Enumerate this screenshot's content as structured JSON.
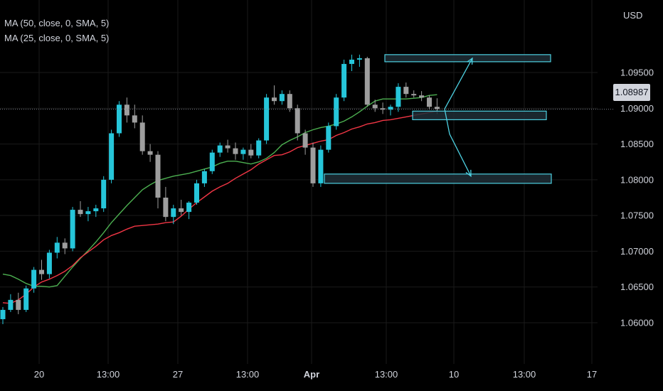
{
  "colors": {
    "background": "#000000",
    "bull": "#26c6da",
    "bear": "#9e9e9e",
    "ma50": "#4caf50",
    "ma25": "#f23645",
    "box_border": "#4dd0e1",
    "box_fill": "#1e2e36",
    "arrow": "#4dd0e1",
    "grid": "#1a1a1a",
    "text": "#d1d4dc"
  },
  "legend": [
    "MA (50, close, 0, SMA, 5)",
    "MA (25, close, 0, SMA, 5)"
  ],
  "currency": "USD",
  "last_price": "1.08987",
  "chart_data": {
    "type": "candlestick",
    "symbol_currency": "USD",
    "ylim": [
      1.0585,
      1.0995
    ],
    "y_ticks": [
      "1.06000",
      "1.06500",
      "1.07000",
      "1.07500",
      "1.08000",
      "1.08500",
      "1.09000",
      "1.09500"
    ],
    "x_ticks": [
      "20",
      "13:00",
      "27",
      "13:00",
      "Apr",
      "13:00",
      "10",
      "13:00",
      "17"
    ],
    "bold_x_tick": "Apr",
    "grid": true,
    "indicators": [
      {
        "name": "MA (50, close, 0, SMA, 5)",
        "color": "#4caf50",
        "values": [
          1.0668,
          1.0666,
          1.0661,
          1.0655,
          1.0651,
          1.0651,
          1.065,
          1.0652,
          1.0665,
          1.0678,
          1.069,
          1.0701,
          1.0713,
          1.0726,
          1.074,
          1.0752,
          1.0764,
          1.0775,
          1.0786,
          1.0793,
          1.0799,
          1.0802,
          1.0805,
          1.0807,
          1.0809,
          1.0812,
          1.0815,
          1.0818,
          1.0823,
          1.0826,
          1.0826,
          1.0824,
          1.0822,
          1.0825,
          1.083,
          1.0838,
          1.0849,
          1.0855,
          1.086,
          1.0866,
          1.087,
          1.0873,
          1.0875,
          1.0878,
          1.0882,
          1.0888,
          1.0895,
          1.0903,
          1.091,
          1.0913,
          1.0913,
          1.0913,
          1.0913,
          1.0914,
          1.0915,
          1.0918,
          1.0919
        ]
      },
      {
        "name": "MA (25, close, 0, SMA, 5)",
        "color": "#f23645",
        "values": [
          1.0628,
          1.0627,
          1.0632,
          1.064,
          1.065,
          1.0657,
          1.0661,
          1.0666,
          1.0672,
          1.068,
          1.0691,
          1.0699,
          1.0707,
          1.0716,
          1.0722,
          1.0726,
          1.0731,
          1.0735,
          1.0736,
          1.0737,
          1.0738,
          1.074,
          1.0741,
          1.0749,
          1.0759,
          1.0768,
          1.0776,
          1.0784,
          1.079,
          1.0795,
          1.0802,
          1.0808,
          1.0814,
          1.0822,
          1.0828,
          1.0834,
          1.0835,
          1.0839,
          1.0845,
          1.0848,
          1.0851,
          1.0854,
          1.0856,
          1.0862,
          1.0866,
          1.0871,
          1.0874,
          1.0878,
          1.088,
          1.0883,
          1.0884,
          1.0886,
          1.0888,
          1.089,
          1.0892,
          1.0894,
          1.0896
        ]
      },
      {
        "name": "",
        "color": "",
        "values": []
      }
    ],
    "candles": [
      [
        1.0605,
        1.0622,
        1.0598,
        1.0618
      ],
      [
        1.0618,
        1.064,
        1.0615,
        1.0632
      ],
      [
        1.0632,
        1.0642,
        1.0612,
        1.0618
      ],
      [
        1.0618,
        1.0652,
        1.0615,
        1.0648
      ],
      [
        1.0648,
        1.0678,
        1.0642,
        1.0674
      ],
      [
        1.0674,
        1.0688,
        1.066,
        1.0668
      ],
      [
        1.0668,
        1.0702,
        1.0662,
        1.0698
      ],
      [
        1.0698,
        1.072,
        1.069,
        1.0712
      ],
      [
        1.0712,
        1.0718,
        1.0696,
        1.0704
      ],
      [
        1.0704,
        1.0762,
        1.07,
        1.0758
      ],
      [
        1.0758,
        1.077,
        1.0748,
        1.0752
      ],
      [
        1.0752,
        1.0762,
        1.0742,
        1.0756
      ],
      [
        1.0756,
        1.0765,
        1.0748,
        1.076
      ],
      [
        1.076,
        1.0805,
        1.0755,
        1.08
      ],
      [
        1.08,
        1.087,
        1.0795,
        1.0865
      ],
      [
        1.0865,
        1.091,
        1.086,
        1.0905
      ],
      [
        1.0905,
        1.0915,
        1.088,
        1.089
      ],
      [
        1.089,
        1.0905,
        1.0872,
        1.088
      ],
      [
        1.088,
        1.089,
        1.0835,
        1.084
      ],
      [
        1.084,
        1.085,
        1.0825,
        1.0835
      ],
      [
        1.0835,
        1.084,
        1.076,
        1.0775
      ],
      [
        1.0775,
        1.079,
        1.0742,
        1.0748
      ],
      [
        1.0748,
        1.0765,
        1.0738,
        1.076
      ],
      [
        1.076,
        1.0772,
        1.075,
        1.0755
      ],
      [
        1.0755,
        1.077,
        1.0745,
        1.0768
      ],
      [
        1.0768,
        1.08,
        1.0765,
        1.0795
      ],
      [
        1.0795,
        1.0815,
        1.079,
        1.0812
      ],
      [
        1.0812,
        1.0842,
        1.0808,
        1.0838
      ],
      [
        1.0838,
        1.0852,
        1.0832,
        1.0848
      ],
      [
        1.0848,
        1.0856,
        1.0838,
        1.0844
      ],
      [
        1.0844,
        1.0852,
        1.0828,
        1.0836
      ],
      [
        1.0836,
        1.0845,
        1.0828,
        1.0842
      ],
      [
        1.0842,
        1.085,
        1.083,
        1.0834
      ],
      [
        1.0834,
        1.0858,
        1.083,
        1.0855
      ],
      [
        1.0855,
        1.092,
        1.085,
        1.0915
      ],
      [
        1.0915,
        1.0932,
        1.0905,
        1.091
      ],
      [
        1.091,
        1.0925,
        1.0905,
        1.092
      ],
      [
        1.092,
        1.0925,
        1.0895,
        1.09
      ],
      [
        1.09,
        1.0905,
        1.0855,
        1.0865
      ],
      [
        1.0865,
        1.087,
        1.0835,
        1.0845
      ],
      [
        1.0845,
        1.0852,
        1.079,
        1.0795
      ],
      [
        1.0795,
        1.0848,
        1.079,
        1.0842
      ],
      [
        1.0842,
        1.088,
        1.0838,
        1.0875
      ],
      [
        1.0875,
        1.092,
        1.087,
        1.0915
      ],
      [
        1.0915,
        1.0968,
        1.091,
        1.0962
      ],
      [
        1.0962,
        1.0975,
        1.0952,
        1.0968
      ],
      [
        1.0968,
        1.0975,
        1.0958,
        1.097
      ],
      [
        1.097,
        1.0972,
        1.0902,
        1.0905
      ],
      [
        1.0905,
        1.0912,
        1.0895,
        1.09
      ],
      [
        1.09,
        1.0908,
        1.0892,
        1.0898
      ],
      [
        1.0898,
        1.0905,
        1.089,
        1.0902
      ],
      [
        1.0902,
        1.0935,
        1.0895,
        1.093
      ],
      [
        1.093,
        1.0936,
        1.0915,
        1.092
      ],
      [
        1.092,
        1.0925,
        1.0915,
        1.0918
      ],
      [
        1.0918,
        1.0924,
        1.091,
        1.0915
      ],
      [
        1.0915,
        1.0918,
        1.0898,
        1.0902
      ],
      [
        1.0902,
        1.0914,
        1.0892,
        1.0899
      ]
    ],
    "zones": [
      {
        "from_tick": "13:00",
        "y_low": 1.0968,
        "y_high": 1.0975
      },
      {
        "y_low": 1.0884,
        "y_high": 1.0896
      },
      {
        "y_low": 1.0795,
        "y_high": 1.0808
      }
    ],
    "arrows": [
      {
        "points": [
          [
            1.0899
          ],
          [
            1.097
          ]
        ]
      },
      {
        "points": [
          [
            1.0899
          ],
          [
            1.0864
          ],
          [
            1.0805
          ]
        ]
      }
    ]
  }
}
